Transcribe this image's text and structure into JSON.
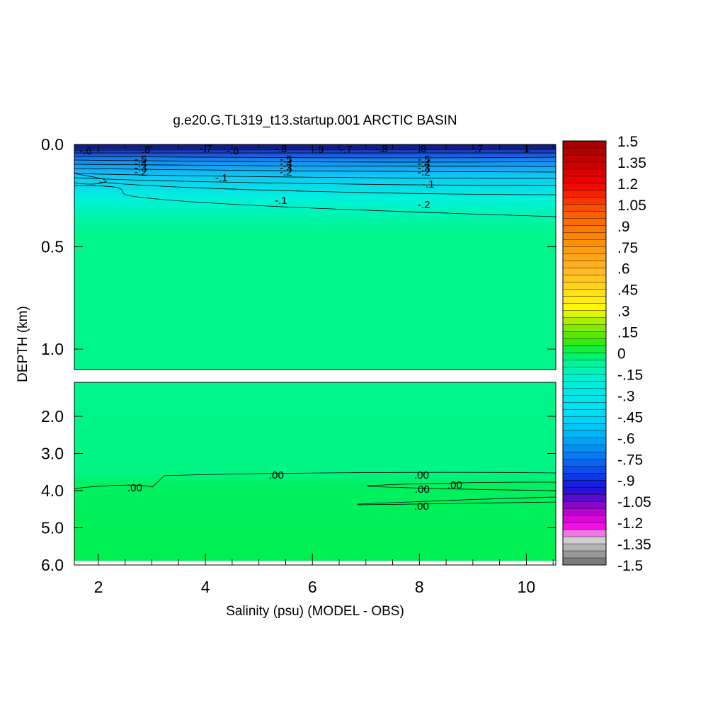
{
  "chart_data": {
    "type": "contour",
    "title": "g.e20.G.TL319_t13.startup.001 ARCTIC BASIN",
    "xlabel": "Salinity (psu) (MODEL - OBS)",
    "ylabel": "DEPTH (km)",
    "x_ticks": [
      "2",
      "4",
      "6",
      "8",
      "10"
    ],
    "xlim": [
      1.55,
      10.55
    ],
    "upper_panel": {
      "ylim": [
        0.0,
        1.1
      ],
      "y_ticks": [
        "0.0",
        "0.5",
        "1.0"
      ]
    },
    "lower_panel": {
      "ylim": [
        1.1,
        6.0
      ],
      "y_ticks": [
        "2.0",
        "3.0",
        "4.0",
        "5.0",
        "6.0"
      ]
    },
    "colorbar": {
      "labels": [
        "1.5",
        "1.35",
        "1.2",
        "1.05",
        ".9",
        ".75",
        ".6",
        ".45",
        ".3",
        ".15",
        "0",
        "-.15",
        "-.3",
        "-.45",
        "-.6",
        "-.75",
        "-.9",
        "-1.05",
        "-1.2",
        "-1.35",
        "-1.5"
      ],
      "range": [
        -1.5,
        1.5
      ],
      "step": 0.05
    },
    "contour_labels": {
      "surface": [
        "-.6",
        "-.7",
        "-.8",
        "-.9",
        "-.2",
        "-.3",
        "-.4",
        "-.5",
        "-1"
      ],
      "upper": [
        "-.1",
        "-.1",
        "-.2",
        "-.1"
      ],
      "deep": [
        ".00",
        ".00",
        ".00",
        ".00",
        ".00",
        ".00"
      ]
    },
    "colors": {
      "field_upper": "#00f58a",
      "field_deep": "#00f050",
      "surface_dark": "#1c2fb4"
    }
  }
}
